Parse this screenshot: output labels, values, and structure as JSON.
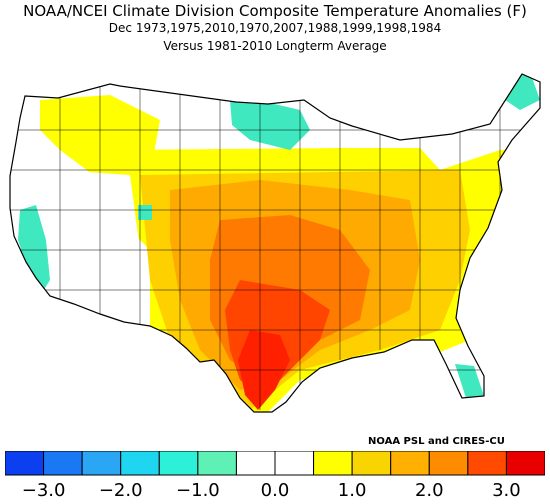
{
  "title": "NOAA/NCEI Climate Division Composite Temperature Anomalies (F)",
  "subtitle": "Dec   1973,1975,2010,1970,2007,1988,1999,1998,1984",
  "baseline": "Versus 1981-2010 Longterm Average",
  "credit": "NOAA PSL and CIRES-CU",
  "legend": {
    "ticks": [
      "−3.0",
      "−2.0",
      "−1.0",
      "0.0",
      "1.0",
      "2.0",
      "3.0"
    ],
    "colors": [
      "#0b3ff0",
      "#1b78f5",
      "#2aa6f4",
      "#1ed6f0",
      "#2cf0d7",
      "#5ef0b4",
      "#ffffff",
      "#ffffff",
      "#ffff00",
      "#f8d400",
      "#ffb000",
      "#ff8c00",
      "#ff4a00",
      "#e80000"
    ]
  },
  "colors": {
    "outline": "#000000",
    "white": "#ffffff",
    "yellow": "#ffff00",
    "gold": "#ffd000",
    "orange": "#ffaa00",
    "dark_orange": "#ff7a00",
    "red_orange": "#ff4500",
    "red": "#ff2000",
    "teal": "#40e8c0"
  }
}
